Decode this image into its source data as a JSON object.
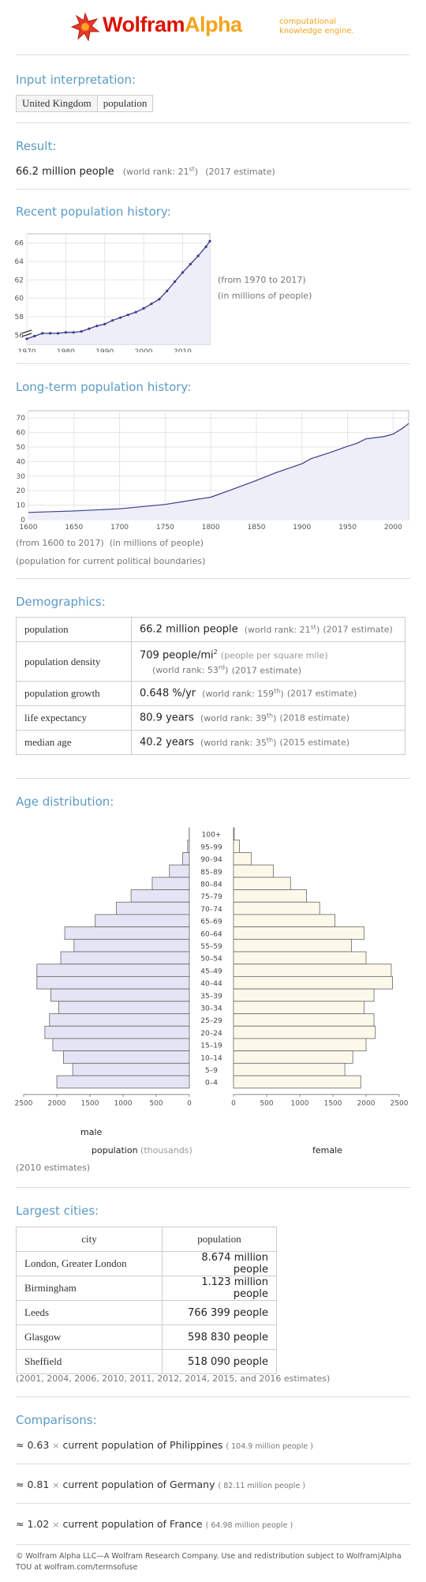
{
  "logo": {
    "brand1": "Wolfram",
    "brand2": "Alpha",
    "tag1": "computational",
    "tag2": "knowledge engine."
  },
  "input": {
    "title": "Input interpretation:",
    "chips": [
      "United Kingdom",
      "population"
    ]
  },
  "result": {
    "title": "Result:",
    "value": "66.2 million people",
    "rank_pre": "(world rank: 21",
    "rank_sup": "st",
    "rank_post": ")",
    "estimate": "(2017 estimate)"
  },
  "recent": {
    "title": "Recent population history:",
    "note1": "(from 1970 to 2017)",
    "note2": "(in millions of people)"
  },
  "longterm": {
    "title": "Long-term population history:",
    "note1": "(from 1600 to 2017)",
    "note2": "(in millions of people)",
    "note3": "(population for current political boundaries)"
  },
  "demographics": {
    "title": "Demographics:",
    "rows": [
      {
        "label": "population",
        "value": "66.2 million people",
        "rank_pre": "(world rank: 21",
        "rank_sup": "st",
        "rank_post": ")",
        "est": "(2017 estimate)"
      },
      {
        "label": "population density",
        "value": "709 people/mi",
        "value_sup": "2",
        "unit_note": "(people per square mile)",
        "rank_pre": "(world rank: 53",
        "rank_sup": "rd",
        "rank_post": ")",
        "est": "(2017 estimate)"
      },
      {
        "label": "population growth",
        "value": "0.648 %/yr",
        "rank_pre": "(world rank: 159",
        "rank_sup": "th",
        "rank_post": ")",
        "est": "(2017 estimate)"
      },
      {
        "label": "life expectancy",
        "value": "80.9 years",
        "rank_pre": "(world rank: 39",
        "rank_sup": "th",
        "rank_post": ")",
        "est": "(2018 estimate)"
      },
      {
        "label": "median age",
        "value": "40.2 years",
        "rank_pre": "(world rank: 35",
        "rank_sup": "th",
        "rank_post": ")",
        "est": "(2015 estimate)"
      }
    ]
  },
  "age": {
    "title": "Age distribution:",
    "male": "male",
    "female": "female",
    "axis_title": "population",
    "axis_unit": "(thousands)",
    "note": "(2010 estimates)"
  },
  "cities": {
    "title": "Largest cities:",
    "headers": [
      "city",
      "population"
    ],
    "rows": [
      {
        "city": "London, Greater London",
        "pop": "8.674 million people"
      },
      {
        "city": "Birmingham",
        "pop": "1.123 million people"
      },
      {
        "city": "Leeds",
        "pop": "766 399 people"
      },
      {
        "city": "Glasgow",
        "pop": "598 830 people"
      },
      {
        "city": "Sheffield",
        "pop": "518 090 people"
      }
    ],
    "note": "(2001, 2004, 2006, 2010, 2011, 2012, 2014, 2015, and 2016 estimates)"
  },
  "comparisons": {
    "title": "Comparisons:",
    "rows": [
      {
        "approx": "≈ 0.63",
        "times": "×",
        "text": "current population of Philippines",
        "paren": "( 104.9 million people )"
      },
      {
        "approx": "≈ 0.81",
        "times": "×",
        "text": "current population of Germany",
        "paren": "( 82.11 million people )"
      },
      {
        "approx": "≈ 1.02",
        "times": "×",
        "text": "current population of France",
        "paren": "( 64.98 million people )"
      }
    ]
  },
  "footer": {
    "line1": "© Wolfram Alpha LLC—A Wolfram Research Company. Use and redistribution subject to Wolfram|Alpha",
    "line2": "TOU at wolfram.com/termsofuse"
  },
  "colors": {
    "accent": "#5b9bc5",
    "line": "#3a3a8c",
    "male_fill": "#e4e4f4",
    "female_fill": "#fdf9ea",
    "brand_red": "#dd1100",
    "brand_orange": "#f4a31b"
  },
  "chart_data": [
    {
      "type": "line",
      "title": "Recent population history",
      "x": [
        1970,
        1972,
        1974,
        1976,
        1978,
        1980,
        1982,
        1984,
        1986,
        1988,
        1990,
        1992,
        1994,
        1996,
        1998,
        2000,
        2002,
        2004,
        2006,
        2008,
        2010,
        2012,
        2014,
        2016,
        2017
      ],
      "y": [
        55.6,
        55.9,
        56.2,
        56.2,
        56.2,
        56.3,
        56.3,
        56.4,
        56.7,
        57.0,
        57.2,
        57.6,
        57.9,
        58.2,
        58.5,
        58.9,
        59.4,
        59.9,
        60.8,
        61.8,
        62.8,
        63.7,
        64.6,
        65.6,
        66.2
      ],
      "xticks": [
        1970,
        1980,
        1990,
        2000,
        2010
      ],
      "yticks": [
        56,
        58,
        60,
        62,
        64,
        66
      ],
      "ylim": [
        55,
        67
      ],
      "xlim": [
        1970,
        2017
      ],
      "axis_break": true
    },
    {
      "type": "area",
      "title": "Long-term population history",
      "x": [
        1600,
        1650,
        1700,
        1750,
        1800,
        1820,
        1850,
        1870,
        1900,
        1910,
        1930,
        1950,
        1960,
        1970,
        1990,
        2000,
        2010,
        2017
      ],
      "y": [
        5,
        6,
        7.5,
        10.5,
        15.5,
        20,
        27,
        32,
        38.5,
        42,
        46,
        50.5,
        52.5,
        55.6,
        57.2,
        58.9,
        62.8,
        66.2
      ],
      "xticks": [
        1600,
        1650,
        1700,
        1750,
        1800,
        1850,
        1900,
        1950,
        2000
      ],
      "yticks": [
        0,
        10,
        20,
        30,
        40,
        50,
        60,
        70
      ],
      "ylim": [
        0,
        75
      ],
      "xlim": [
        1600,
        2017
      ]
    },
    {
      "type": "bar",
      "title": "Age distribution",
      "categories": [
        "100+",
        "95-99",
        "90-94",
        "85-89",
        "80-84",
        "75-79",
        "70-74",
        "65-69",
        "60-64",
        "55-59",
        "50-54",
        "45-49",
        "40-44",
        "35-39",
        "30-34",
        "25-29",
        "20-24",
        "15-19",
        "10-14",
        "5-9",
        "0-4"
      ],
      "category_labels": [
        "100+",
        "95–99",
        "90–94",
        "85–89",
        "80–84",
        "75–79",
        "70–74",
        "65–69",
        "60–64",
        "55–59",
        "50–54",
        "45–49",
        "40–44",
        "35–39",
        "30–34",
        "25–29",
        "20–24",
        "15–19",
        "10–14",
        "5–9",
        "0–4"
      ],
      "series": [
        {
          "name": "male",
          "values": [
            2,
            25,
            100,
            300,
            560,
            880,
            1100,
            1420,
            1880,
            1740,
            1940,
            2300,
            2300,
            2090,
            1970,
            2110,
            2180,
            2060,
            1900,
            1760,
            2000
          ]
        },
        {
          "name": "female",
          "values": [
            10,
            90,
            270,
            600,
            860,
            1100,
            1300,
            1530,
            1970,
            1780,
            2000,
            2380,
            2400,
            2120,
            1970,
            2120,
            2140,
            2000,
            1800,
            1680,
            1920
          ]
        }
      ],
      "xticks": [
        0,
        500,
        1000,
        1500,
        2000,
        2500
      ],
      "xlim": [
        0,
        2500
      ]
    }
  ]
}
